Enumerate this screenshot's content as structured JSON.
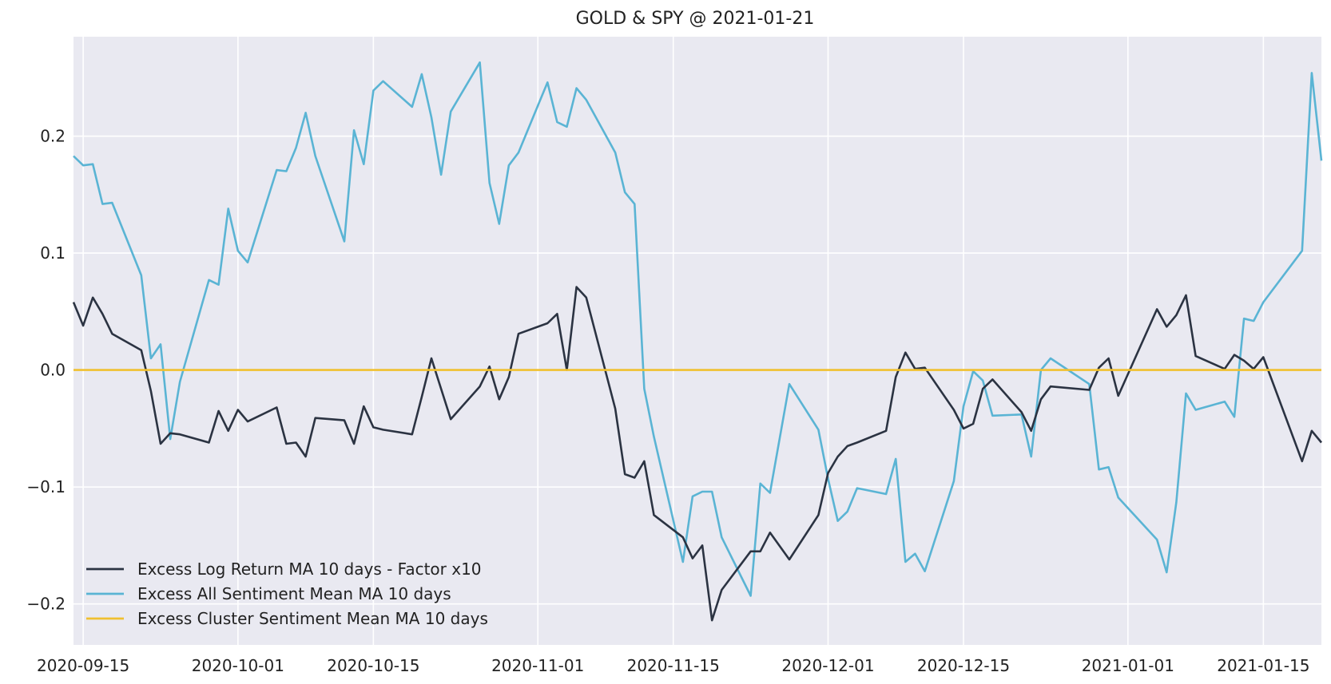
{
  "chart_data": {
    "type": "line",
    "title": "GOLD & SPY @ 2021-01-21",
    "xlabel": "",
    "ylabel": "",
    "x_axis": {
      "type": "date",
      "range": [
        "2020-09-14",
        "2021-01-21"
      ],
      "ticks": [
        "2020-09-15",
        "2020-10-01",
        "2020-10-15",
        "2020-11-01",
        "2020-11-15",
        "2020-12-01",
        "2020-12-15",
        "2021-01-01",
        "2021-01-15"
      ]
    },
    "y_axis": {
      "range": [
        -0.235,
        0.285
      ],
      "ticks": [
        {
          "value": -0.2,
          "label": "−0.2"
        },
        {
          "value": -0.1,
          "label": "−0.1"
        },
        {
          "value": 0.0,
          "label": "0.0"
        },
        {
          "value": 0.1,
          "label": "0.1"
        },
        {
          "value": 0.2,
          "label": "0.2"
        }
      ]
    },
    "grid": true,
    "legend_position": "bottom-left",
    "series": [
      {
        "name": "Excess Log Return MA 10 days - Factor x10",
        "color": "#2b3342",
        "points": [
          [
            "2020-09-14",
            0.058
          ],
          [
            "2020-09-15",
            0.038
          ],
          [
            "2020-09-16",
            0.062
          ],
          [
            "2020-09-17",
            0.048
          ],
          [
            "2020-09-18",
            0.031
          ],
          [
            "2020-09-21",
            0.017
          ],
          [
            "2020-09-22",
            -0.018
          ],
          [
            "2020-09-23",
            -0.063
          ],
          [
            "2020-09-24",
            -0.054
          ],
          [
            "2020-09-25",
            -0.055
          ],
          [
            "2020-09-28",
            -0.062
          ],
          [
            "2020-09-29",
            -0.035
          ],
          [
            "2020-09-30",
            -0.052
          ],
          [
            "2020-10-01",
            -0.034
          ],
          [
            "2020-10-02",
            -0.044
          ],
          [
            "2020-10-05",
            -0.032
          ],
          [
            "2020-10-06",
            -0.063
          ],
          [
            "2020-10-07",
            -0.062
          ],
          [
            "2020-10-08",
            -0.074
          ],
          [
            "2020-10-09",
            -0.041
          ],
          [
            "2020-10-12",
            -0.043
          ],
          [
            "2020-10-13",
            -0.063
          ],
          [
            "2020-10-14",
            -0.031
          ],
          [
            "2020-10-15",
            -0.049
          ],
          [
            "2020-10-16",
            -0.051
          ],
          [
            "2020-10-19",
            -0.055
          ],
          [
            "2020-10-20",
            -0.023
          ],
          [
            "2020-10-21",
            0.01
          ],
          [
            "2020-10-22",
            -0.016
          ],
          [
            "2020-10-23",
            -0.042
          ],
          [
            "2020-10-26",
            -0.014
          ],
          [
            "2020-10-27",
            0.003
          ],
          [
            "2020-10-28",
            -0.025
          ],
          [
            "2020-10-29",
            -0.006
          ],
          [
            "2020-10-30",
            0.031
          ],
          [
            "2020-11-02",
            0.04
          ],
          [
            "2020-11-03",
            0.048
          ],
          [
            "2020-11-04",
            0.0
          ],
          [
            "2020-11-05",
            0.071
          ],
          [
            "2020-11-06",
            0.062
          ],
          [
            "2020-11-09",
            -0.033
          ],
          [
            "2020-11-10",
            -0.089
          ],
          [
            "2020-11-11",
            -0.092
          ],
          [
            "2020-11-12",
            -0.078
          ],
          [
            "2020-11-13",
            -0.124
          ],
          [
            "2020-11-16",
            -0.143
          ],
          [
            "2020-11-17",
            -0.161
          ],
          [
            "2020-11-18",
            -0.15
          ],
          [
            "2020-11-19",
            -0.214
          ],
          [
            "2020-11-20",
            -0.188
          ],
          [
            "2020-11-23",
            -0.155
          ],
          [
            "2020-11-24",
            -0.155
          ],
          [
            "2020-11-25",
            -0.139
          ],
          [
            "2020-11-27",
            -0.162
          ],
          [
            "2020-11-30",
            -0.124
          ],
          [
            "2020-12-01",
            -0.088
          ],
          [
            "2020-12-02",
            -0.074
          ],
          [
            "2020-12-03",
            -0.065
          ],
          [
            "2020-12-04",
            -0.062
          ],
          [
            "2020-12-07",
            -0.052
          ],
          [
            "2020-12-08",
            -0.006
          ],
          [
            "2020-12-09",
            0.015
          ],
          [
            "2020-12-10",
            0.001
          ],
          [
            "2020-12-11",
            0.002
          ],
          [
            "2020-12-14",
            -0.034
          ],
          [
            "2020-12-15",
            -0.05
          ],
          [
            "2020-12-16",
            -0.046
          ],
          [
            "2020-12-17",
            -0.016
          ],
          [
            "2020-12-18",
            -0.008
          ],
          [
            "2020-12-21",
            -0.036
          ],
          [
            "2020-12-22",
            -0.052
          ],
          [
            "2020-12-23",
            -0.025
          ],
          [
            "2020-12-24",
            -0.014
          ],
          [
            "2020-12-28",
            -0.017
          ],
          [
            "2020-12-29",
            0.002
          ],
          [
            "2020-12-30",
            0.01
          ],
          [
            "2020-12-31",
            -0.022
          ],
          [
            "2021-01-04",
            0.052
          ],
          [
            "2021-01-05",
            0.037
          ],
          [
            "2021-01-06",
            0.047
          ],
          [
            "2021-01-07",
            0.064
          ],
          [
            "2021-01-08",
            0.012
          ],
          [
            "2021-01-11",
            0.001
          ],
          [
            "2021-01-12",
            0.013
          ],
          [
            "2021-01-13",
            0.008
          ],
          [
            "2021-01-14",
            0.001
          ],
          [
            "2021-01-15",
            0.011
          ],
          [
            "2021-01-19",
            -0.078
          ],
          [
            "2021-01-20",
            -0.052
          ],
          [
            "2021-01-21",
            -0.062
          ]
        ]
      },
      {
        "name": "Excess All Sentiment Mean MA 10 days",
        "color": "#5ab4d4",
        "points": [
          [
            "2020-09-14",
            0.183
          ],
          [
            "2020-09-15",
            0.175
          ],
          [
            "2020-09-16",
            0.176
          ],
          [
            "2020-09-17",
            0.142
          ],
          [
            "2020-09-18",
            0.143
          ],
          [
            "2020-09-21",
            0.081
          ],
          [
            "2020-09-22",
            0.01
          ],
          [
            "2020-09-23",
            0.022
          ],
          [
            "2020-09-24",
            -0.059
          ],
          [
            "2020-09-25",
            -0.01
          ],
          [
            "2020-09-28",
            0.077
          ],
          [
            "2020-09-29",
            0.073
          ],
          [
            "2020-09-30",
            0.138
          ],
          [
            "2020-10-01",
            0.102
          ],
          [
            "2020-10-02",
            0.092
          ],
          [
            "2020-10-05",
            0.171
          ],
          [
            "2020-10-06",
            0.17
          ],
          [
            "2020-10-07",
            0.19
          ],
          [
            "2020-10-08",
            0.22
          ],
          [
            "2020-10-09",
            0.183
          ],
          [
            "2020-10-12",
            0.11
          ],
          [
            "2020-10-13",
            0.205
          ],
          [
            "2020-10-14",
            0.176
          ],
          [
            "2020-10-15",
            0.239
          ],
          [
            "2020-10-16",
            0.247
          ],
          [
            "2020-10-19",
            0.225
          ],
          [
            "2020-10-20",
            0.253
          ],
          [
            "2020-10-21",
            0.216
          ],
          [
            "2020-10-22",
            0.167
          ],
          [
            "2020-10-23",
            0.221
          ],
          [
            "2020-10-26",
            0.263
          ],
          [
            "2020-10-27",
            0.16
          ],
          [
            "2020-10-28",
            0.125
          ],
          [
            "2020-10-29",
            0.175
          ],
          [
            "2020-10-30",
            0.186
          ],
          [
            "2020-11-02",
            0.246
          ],
          [
            "2020-11-03",
            0.212
          ],
          [
            "2020-11-04",
            0.208
          ],
          [
            "2020-11-05",
            0.241
          ],
          [
            "2020-11-06",
            0.231
          ],
          [
            "2020-11-09",
            0.186
          ],
          [
            "2020-11-10",
            0.152
          ],
          [
            "2020-11-11",
            0.142
          ],
          [
            "2020-11-12",
            -0.016
          ],
          [
            "2020-11-13",
            -0.057
          ],
          [
            "2020-11-16",
            -0.164
          ],
          [
            "2020-11-17",
            -0.108
          ],
          [
            "2020-11-18",
            -0.104
          ],
          [
            "2020-11-19",
            -0.104
          ],
          [
            "2020-11-20",
            -0.143
          ],
          [
            "2020-11-23",
            -0.193
          ],
          [
            "2020-11-24",
            -0.097
          ],
          [
            "2020-11-25",
            -0.105
          ],
          [
            "2020-11-27",
            -0.012
          ],
          [
            "2020-11-30",
            -0.051
          ],
          [
            "2020-12-01",
            -0.093
          ],
          [
            "2020-12-02",
            -0.129
          ],
          [
            "2020-12-03",
            -0.121
          ],
          [
            "2020-12-04",
            -0.101
          ],
          [
            "2020-12-07",
            -0.106
          ],
          [
            "2020-12-08",
            -0.076
          ],
          [
            "2020-12-09",
            -0.164
          ],
          [
            "2020-12-10",
            -0.157
          ],
          [
            "2020-12-11",
            -0.172
          ],
          [
            "2020-12-14",
            -0.095
          ],
          [
            "2020-12-15",
            -0.031
          ],
          [
            "2020-12-16",
            -0.001
          ],
          [
            "2020-12-17",
            -0.009
          ],
          [
            "2020-12-18",
            -0.039
          ],
          [
            "2020-12-21",
            -0.038
          ],
          [
            "2020-12-22",
            -0.074
          ],
          [
            "2020-12-23",
            0.0
          ],
          [
            "2020-12-24",
            0.01
          ],
          [
            "2020-12-28",
            -0.012
          ],
          [
            "2020-12-29",
            -0.085
          ],
          [
            "2020-12-30",
            -0.083
          ],
          [
            "2020-12-31",
            -0.109
          ],
          [
            "2021-01-04",
            -0.145
          ],
          [
            "2021-01-05",
            -0.173
          ],
          [
            "2021-01-06",
            -0.113
          ],
          [
            "2021-01-07",
            -0.02
          ],
          [
            "2021-01-08",
            -0.034
          ],
          [
            "2021-01-11",
            -0.027
          ],
          [
            "2021-01-12",
            -0.04
          ],
          [
            "2021-01-13",
            0.044
          ],
          [
            "2021-01-14",
            0.042
          ],
          [
            "2021-01-15",
            0.058
          ],
          [
            "2021-01-19",
            0.102
          ],
          [
            "2021-01-20",
            0.254
          ],
          [
            "2021-01-21",
            0.179
          ]
        ]
      },
      {
        "name": "Excess Cluster Sentiment Mean MA 10 days",
        "color": "#f0c030",
        "points": [
          [
            "2020-09-14",
            0.0
          ],
          [
            "2021-01-21",
            0.0
          ]
        ]
      }
    ]
  }
}
